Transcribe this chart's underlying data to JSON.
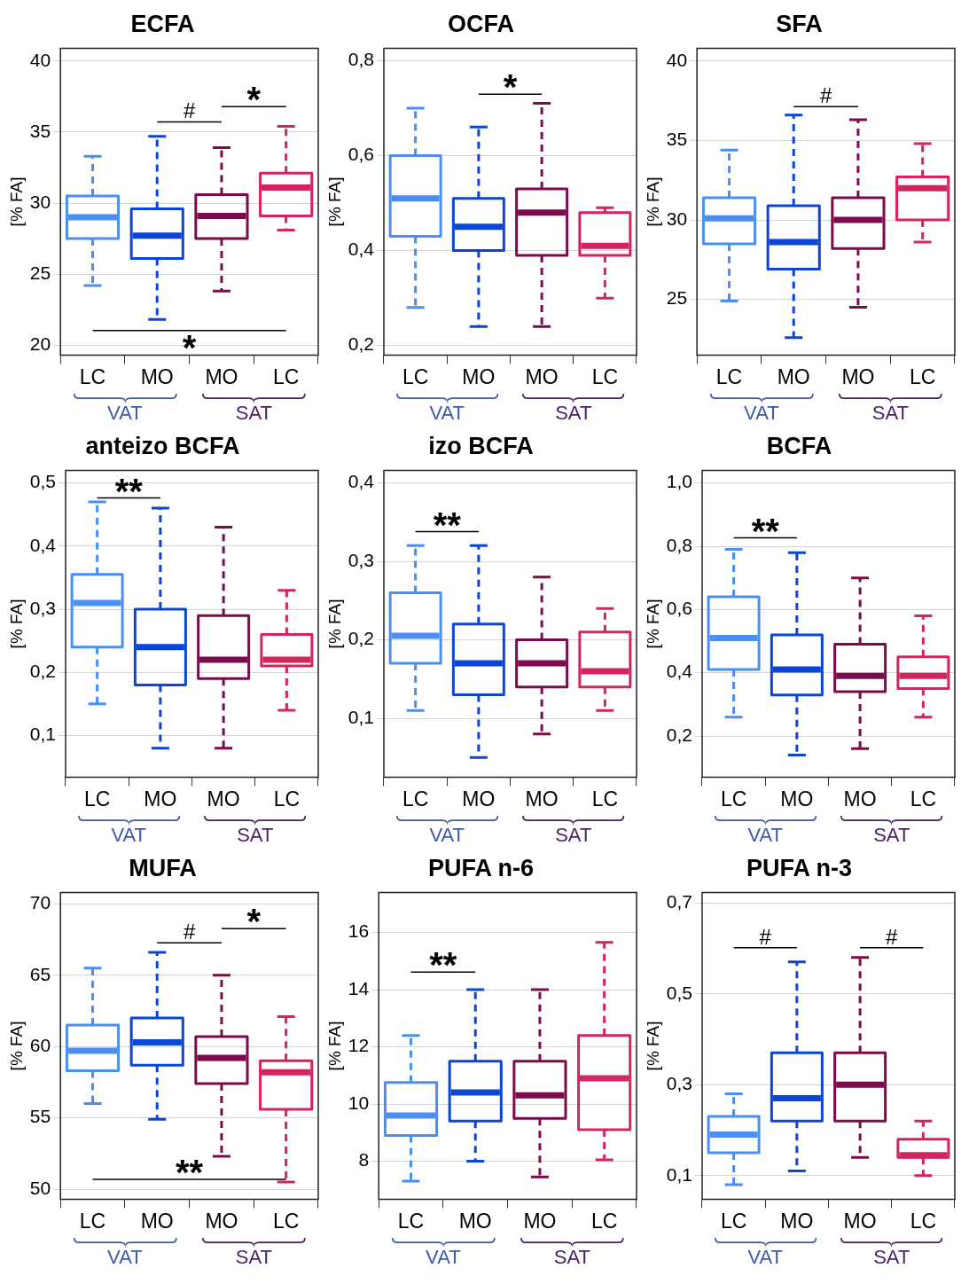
{
  "chart_data": [
    {
      "type": "box",
      "title": "ECFA",
      "ylabel": "[% FA]",
      "categories": [
        "LC",
        "MO",
        "MO",
        "LC"
      ],
      "colors": [
        "#4a8ef2",
        "#0a45d4",
        "#7c0b4c",
        "#d4245c"
      ],
      "line_style": "dashed",
      "grid": "y",
      "ylim": [
        19.3,
        40.9
      ],
      "yticks": [
        20,
        25,
        30,
        35,
        40
      ],
      "annotations": [
        "#",
        "*",
        "*",
        "VAT",
        "SAT"
      ],
      "boxes": [
        {
          "low": 24.2,
          "q1": 27.5,
          "median": 29.0,
          "q3": 30.5,
          "high": 33.3
        },
        {
          "low": 21.8,
          "q1": 26.1,
          "median": 27.7,
          "q3": 29.6,
          "high": 34.7
        },
        {
          "low": 23.8,
          "q1": 27.5,
          "median": 29.1,
          "q3": 30.6,
          "high": 33.9
        },
        {
          "low": 28.1,
          "q1": 29.1,
          "median": 31.1,
          "q3": 32.1,
          "high": 35.4
        }
      ]
    },
    {
      "type": "box",
      "title": "OCFA",
      "ylabel": "[% FA]",
      "categories": [
        "LC",
        "MO",
        "MO",
        "LC"
      ],
      "colors": [
        "#4a8ef2",
        "#0a45d4",
        "#7c0b4c",
        "#d4245c"
      ],
      "line_style": "dashed",
      "grid": "y",
      "ylim": [
        0.18,
        0.826
      ],
      "yticks": [
        {
          "value": 0.2,
          "label": "0,2"
        },
        {
          "value": 0.4,
          "label": "0,4"
        },
        {
          "value": 0.6,
          "label": "0,6"
        },
        {
          "value": 0.8,
          "label": "0,8"
        }
      ],
      "annotations": [
        "*",
        "VAT",
        "SAT"
      ],
      "boxes": [
        {
          "low": 0.28,
          "q1": 0.43,
          "median": 0.51,
          "q3": 0.6,
          "high": 0.7
        },
        {
          "low": 0.24,
          "q1": 0.4,
          "median": 0.45,
          "q3": 0.51,
          "high": 0.66
        },
        {
          "low": 0.24,
          "q1": 0.39,
          "median": 0.48,
          "q3": 0.53,
          "high": 0.71
        },
        {
          "low": 0.3,
          "q1": 0.39,
          "median": 0.41,
          "q3": 0.48,
          "high": 0.49
        }
      ]
    },
    {
      "type": "box",
      "title": "SFA",
      "ylabel": "[% FA]",
      "categories": [
        "LC",
        "MO",
        "MO",
        "LC"
      ],
      "colors": [
        "#4a8ef2",
        "#0a45d4",
        "#7c0b4c",
        "#d4245c"
      ],
      "line_style": "dashed",
      "grid": "y",
      "ylim": [
        21.5,
        40.8
      ],
      "yticks": [
        25,
        30,
        35,
        40
      ],
      "annotations": [
        "#",
        "VAT",
        "SAT"
      ],
      "boxes": [
        {
          "low": 24.9,
          "q1": 28.5,
          "median": 30.1,
          "q3": 31.4,
          "high": 34.4
        },
        {
          "low": 22.6,
          "q1": 26.9,
          "median": 28.6,
          "q3": 30.9,
          "high": 36.6
        },
        {
          "low": 24.5,
          "q1": 28.2,
          "median": 30.0,
          "q3": 31.4,
          "high": 36.3
        },
        {
          "low": 28.6,
          "q1": 30.0,
          "median": 32.0,
          "q3": 32.7,
          "high": 34.8
        }
      ]
    },
    {
      "type": "box",
      "title": "anteizo BCFA",
      "ylabel": "[% FA]",
      "categories": [
        "LC",
        "MO",
        "MO",
        "LC"
      ],
      "colors": [
        "#4a8ef2",
        "#0a45d4",
        "#7c0b4c",
        "#d4245c"
      ],
      "line_style": "dashed",
      "grid": "y",
      "ylim": [
        0.034,
        0.52
      ],
      "yticks": [
        {
          "value": 0.1,
          "label": "0,1"
        },
        {
          "value": 0.2,
          "label": "0,2"
        },
        {
          "value": 0.3,
          "label": "0,3"
        },
        {
          "value": 0.4,
          "label": "0,4"
        },
        {
          "value": 0.5,
          "label": "0,5"
        }
      ],
      "annotations": [
        "**",
        "VAT",
        "SAT"
      ],
      "boxes": [
        {
          "low": 0.15,
          "q1": 0.24,
          "median": 0.31,
          "q3": 0.355,
          "high": 0.47
        },
        {
          "low": 0.08,
          "q1": 0.18,
          "median": 0.24,
          "q3": 0.3,
          "high": 0.46
        },
        {
          "low": 0.08,
          "q1": 0.19,
          "median": 0.22,
          "q3": 0.29,
          "high": 0.43
        },
        {
          "low": 0.14,
          "q1": 0.21,
          "median": 0.22,
          "q3": 0.26,
          "high": 0.33
        }
      ]
    },
    {
      "type": "box",
      "title": "izo BCFA",
      "ylabel": "[% FA]",
      "categories": [
        "LC",
        "MO",
        "MO",
        "LC"
      ],
      "colors": [
        "#4a8ef2",
        "#0a45d4",
        "#7c0b4c",
        "#d4245c"
      ],
      "line_style": "dashed",
      "grid": "y",
      "ylim": [
        0.025,
        0.416
      ],
      "yticks": [
        {
          "value": 0.1,
          "label": "0,1"
        },
        {
          "value": 0.2,
          "label": "0,2"
        },
        {
          "value": 0.3,
          "label": "0,3"
        },
        {
          "value": 0.4,
          "label": "0,4"
        }
      ],
      "annotations": [
        "**",
        "VAT",
        "SAT"
      ],
      "boxes": [
        {
          "low": 0.11,
          "q1": 0.17,
          "median": 0.205,
          "q3": 0.26,
          "high": 0.32
        },
        {
          "low": 0.05,
          "q1": 0.13,
          "median": 0.17,
          "q3": 0.22,
          "high": 0.32
        },
        {
          "low": 0.08,
          "q1": 0.14,
          "median": 0.17,
          "q3": 0.2,
          "high": 0.28
        },
        {
          "low": 0.11,
          "q1": 0.14,
          "median": 0.16,
          "q3": 0.21,
          "high": 0.24
        }
      ]
    },
    {
      "type": "box",
      "title": "BCFA",
      "ylabel": "[% FA]",
      "categories": [
        "LC",
        "MO",
        "MO",
        "LC"
      ],
      "colors": [
        "#4a8ef2",
        "#0a45d4",
        "#7c0b4c",
        "#d4245c"
      ],
      "line_style": "dashed",
      "grid": "y",
      "ylim": [
        0.07,
        1.04
      ],
      "yticks": [
        {
          "value": 0.2,
          "label": "0,2"
        },
        {
          "value": 0.4,
          "label": "0,4"
        },
        {
          "value": 0.6,
          "label": "0,6"
        },
        {
          "value": 0.8,
          "label": "0,8"
        },
        {
          "value": 1.0,
          "label": "1,0"
        }
      ],
      "annotations": [
        "**",
        "VAT",
        "SAT"
      ],
      "boxes": [
        {
          "low": 0.26,
          "q1": 0.41,
          "median": 0.51,
          "q3": 0.64,
          "high": 0.79
        },
        {
          "low": 0.14,
          "q1": 0.33,
          "median": 0.41,
          "q3": 0.52,
          "high": 0.78
        },
        {
          "low": 0.16,
          "q1": 0.34,
          "median": 0.39,
          "q3": 0.49,
          "high": 0.7
        },
        {
          "low": 0.26,
          "q1": 0.35,
          "median": 0.39,
          "q3": 0.45,
          "high": 0.58
        }
      ]
    },
    {
      "type": "box",
      "title": "MUFA",
      "ylabel": "[% FA]",
      "categories": [
        "LC",
        "MO",
        "MO",
        "LC"
      ],
      "colors": [
        "#4a8ef2",
        "#0a45d4",
        "#7c0b4c",
        "#d4245c"
      ],
      "line_style": "dashed",
      "grid": "y",
      "ylim": [
        49.3,
        70.8
      ],
      "yticks": [
        50,
        55,
        60,
        65,
        70
      ],
      "annotations": [
        "#",
        "*",
        "**",
        "VAT",
        "SAT"
      ],
      "boxes": [
        {
          "low": 56.0,
          "q1": 58.3,
          "median": 59.7,
          "q3": 61.5,
          "high": 65.5
        },
        {
          "low": 54.9,
          "q1": 58.7,
          "median": 60.3,
          "q3": 62.0,
          "high": 66.6
        },
        {
          "low": 52.3,
          "q1": 57.4,
          "median": 59.2,
          "q3": 60.7,
          "high": 65.0
        },
        {
          "low": 50.5,
          "q1": 55.6,
          "median": 58.2,
          "q3": 59.0,
          "high": 62.1
        }
      ]
    },
    {
      "type": "box",
      "title": "PUFA n-6",
      "ylabel": "[% FA]",
      "categories": [
        "LC",
        "MO",
        "MO",
        "LC"
      ],
      "colors": [
        "#4a8ef2",
        "#0a45d4",
        "#7c0b4c",
        "#d4245c"
      ],
      "line_style": "dashed",
      "grid": "y",
      "ylim": [
        6.67,
        17.4
      ],
      "yticks": [
        8,
        10,
        12,
        14,
        16
      ],
      "annotations": [
        "**",
        "VAT",
        "SAT"
      ],
      "boxes": [
        {
          "low": 7.3,
          "q1": 8.9,
          "median": 9.6,
          "q3": 10.75,
          "high": 12.4
        },
        {
          "low": 8.0,
          "q1": 9.4,
          "median": 10.4,
          "q3": 11.5,
          "high": 14.0
        },
        {
          "low": 7.45,
          "q1": 9.5,
          "median": 10.3,
          "q3": 11.5,
          "high": 14.0
        },
        {
          "low": 8.05,
          "q1": 9.1,
          "median": 10.9,
          "q3": 12.4,
          "high": 15.65
        }
      ]
    },
    {
      "type": "box",
      "title": "PUFA n-3",
      "ylabel": "[% FA]",
      "categories": [
        "LC",
        "MO",
        "MO",
        "LC"
      ],
      "colors": [
        "#4a8ef2",
        "#0a45d4",
        "#7c0b4c",
        "#d4245c"
      ],
      "line_style": "dashed",
      "grid": "y",
      "ylim": [
        0.048,
        0.723
      ],
      "yticks": [
        {
          "value": 0.1,
          "label": "0,1"
        },
        {
          "value": 0.3,
          "label": "0,3"
        },
        {
          "value": 0.5,
          "label": "0,5"
        },
        {
          "value": 0.7,
          "label": "0,7"
        }
      ],
      "annotations": [
        "#",
        "#",
        "VAT",
        "SAT"
      ],
      "boxes": [
        {
          "low": 0.08,
          "q1": 0.15,
          "median": 0.19,
          "q3": 0.23,
          "high": 0.28
        },
        {
          "low": 0.11,
          "q1": 0.22,
          "median": 0.27,
          "q3": 0.37,
          "high": 0.57
        },
        {
          "low": 0.14,
          "q1": 0.22,
          "median": 0.3,
          "q3": 0.37,
          "high": 0.58
        },
        {
          "low": 0.1,
          "q1": 0.14,
          "median": 0.145,
          "q3": 0.18,
          "high": 0.22
        }
      ]
    }
  ]
}
